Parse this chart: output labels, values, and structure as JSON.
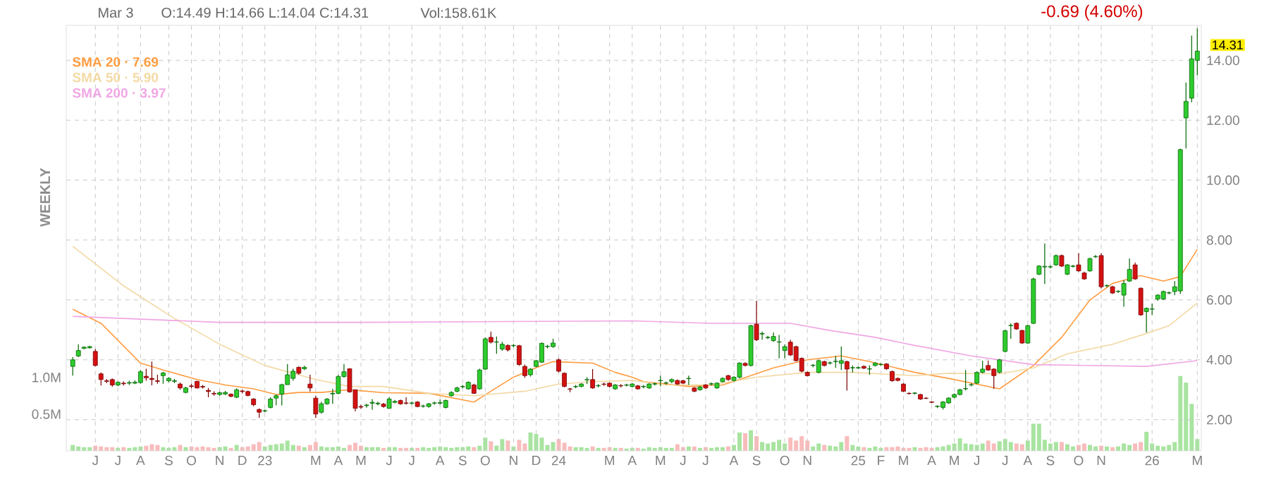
{
  "chart_data": {
    "type": "candlestick",
    "x": [
      "2022-05-09",
      "2022-05-16",
      "2022-05-23",
      "2022-05-30",
      "2022-06-06",
      "2022-06-13",
      "2022-06-20",
      "2022-06-27",
      "2022-07-04",
      "2022-07-11",
      "2022-07-18",
      "2022-07-25",
      "2022-08-01",
      "2022-08-08",
      "2022-08-15",
      "2022-08-22",
      "2022-08-29",
      "2022-09-05",
      "2022-09-12",
      "2022-09-19",
      "2022-09-26",
      "2022-10-03",
      "2022-10-10",
      "2022-10-17",
      "2022-10-24",
      "2022-10-31",
      "2022-11-07",
      "2022-11-14",
      "2022-11-21",
      "2022-11-28",
      "2022-12-05",
      "2022-12-12",
      "2022-12-19",
      "2022-12-26",
      "2023-01-02",
      "2023-01-09",
      "2023-01-16",
      "2023-01-23",
      "2023-01-30",
      "2023-02-06",
      "2023-02-13",
      "2023-02-20",
      "2023-02-27",
      "2023-03-06",
      "2023-03-13",
      "2023-03-20",
      "2023-03-27",
      "2023-04-03",
      "2023-04-10",
      "2023-04-17",
      "2023-04-24",
      "2023-05-01",
      "2023-05-08",
      "2023-05-15",
      "2023-05-22",
      "2023-05-29",
      "2023-06-05",
      "2023-06-12",
      "2023-06-19",
      "2023-06-26",
      "2023-07-03",
      "2023-07-10",
      "2023-07-17",
      "2023-07-24",
      "2023-07-31",
      "2023-08-07",
      "2023-08-14",
      "2023-08-21",
      "2023-08-28",
      "2023-09-04",
      "2023-09-11",
      "2023-09-18",
      "2023-09-25",
      "2023-10-02",
      "2023-10-09",
      "2023-10-16",
      "2023-10-23",
      "2023-10-30",
      "2023-11-06",
      "2023-11-13",
      "2023-11-20",
      "2023-11-27",
      "2023-12-04",
      "2023-12-11",
      "2023-12-18",
      "2023-12-25",
      "2024-01-01",
      "2024-01-08",
      "2024-01-15",
      "2024-01-22",
      "2024-01-29",
      "2024-02-05",
      "2024-02-12",
      "2024-02-19",
      "2024-02-26",
      "2024-03-04",
      "2024-03-11",
      "2024-03-18",
      "2024-03-25",
      "2024-04-01",
      "2024-04-08",
      "2024-04-15",
      "2024-04-22",
      "2024-04-29",
      "2024-05-06",
      "2024-05-13",
      "2024-05-20",
      "2024-05-27",
      "2024-06-03",
      "2024-06-10",
      "2024-06-17",
      "2024-06-24",
      "2024-07-01",
      "2024-07-08",
      "2024-07-15",
      "2024-07-22",
      "2024-07-29",
      "2024-08-05",
      "2024-08-12",
      "2024-08-19",
      "2024-08-26",
      "2024-09-02",
      "2024-09-09",
      "2024-09-16",
      "2024-09-23",
      "2024-09-30",
      "2024-10-07",
      "2024-10-14",
      "2024-10-21",
      "2024-10-28",
      "2024-11-04",
      "2024-11-11",
      "2024-11-18",
      "2024-11-25",
      "2024-12-02",
      "2024-12-09",
      "2024-12-16",
      "2024-12-23",
      "2024-12-30",
      "2025-01-06",
      "2025-01-13",
      "2025-01-20",
      "2025-01-27",
      "2025-02-03",
      "2025-02-10",
      "2025-02-17",
      "2025-02-24",
      "2025-03-03",
      "2025-03-10",
      "2025-03-17",
      "2025-03-24",
      "2025-03-31",
      "2025-04-07",
      "2025-04-14",
      "2025-04-21",
      "2025-04-28",
      "2025-05-05",
      "2025-05-12",
      "2025-05-19",
      "2025-05-26",
      "2025-06-02",
      "2025-06-09",
      "2025-06-16",
      "2025-06-23",
      "2025-06-30",
      "2025-07-07",
      "2025-07-14",
      "2025-07-21",
      "2025-07-28",
      "2025-08-04",
      "2025-08-11",
      "2025-08-18",
      "2025-08-25",
      "2025-09-01",
      "2025-09-08",
      "2025-09-15",
      "2025-09-22",
      "2025-09-29",
      "2025-10-06",
      "2025-10-13",
      "2025-10-20",
      "2025-10-27",
      "2025-11-03",
      "2025-11-10",
      "2025-11-17",
      "2025-11-24",
      "2025-12-01",
      "2025-12-08",
      "2025-12-15",
      "2025-12-22",
      "2025-12-29",
      "2026-01-05",
      "2026-01-12",
      "2026-01-19",
      "2026-01-26",
      "2026-02-02",
      "2026-02-09",
      "2026-02-16",
      "2026-02-23",
      "2026-03-02"
    ],
    "ohlc": [
      [
        3.78,
        4.09,
        3.47,
        4.0
      ],
      [
        4.13,
        4.52,
        4.09,
        4.31
      ],
      [
        4.38,
        4.45,
        4.36,
        4.42
      ],
      [
        4.4,
        4.47,
        4.38,
        4.44
      ],
      [
        4.28,
        4.36,
        3.78,
        3.81
      ],
      [
        3.53,
        3.58,
        3.14,
        3.34
      ],
      [
        3.3,
        3.36,
        3.22,
        3.28
      ],
      [
        3.34,
        3.38,
        3.1,
        3.16
      ],
      [
        3.16,
        3.28,
        3.12,
        3.25
      ],
      [
        3.22,
        3.28,
        3.14,
        3.2
      ],
      [
        3.22,
        3.3,
        3.16,
        3.24
      ],
      [
        3.22,
        3.31,
        3.19,
        3.25
      ],
      [
        3.24,
        3.66,
        3.2,
        3.6
      ],
      [
        3.45,
        3.7,
        3.3,
        3.4
      ],
      [
        3.38,
        3.94,
        3.15,
        3.34
      ],
      [
        3.3,
        3.5,
        3.2,
        3.28
      ],
      [
        3.47,
        3.6,
        3.2,
        3.56
      ],
      [
        3.3,
        3.42,
        3.25,
        3.38
      ],
      [
        3.28,
        3.36,
        3.22,
        3.3
      ],
      [
        3.19,
        3.24,
        3.0,
        3.06
      ],
      [
        2.91,
        3.1,
        2.88,
        3.06
      ],
      [
        3.13,
        3.2,
        3.05,
        3.11
      ],
      [
        3.28,
        3.3,
        3.04,
        3.06
      ],
      [
        3.11,
        3.16,
        3.04,
        3.09
      ],
      [
        2.98,
        3.06,
        2.75,
        2.94
      ],
      [
        2.88,
        2.95,
        2.8,
        2.86
      ],
      [
        2.84,
        2.94,
        2.8,
        2.9
      ],
      [
        2.86,
        2.96,
        2.82,
        2.91
      ],
      [
        2.85,
        2.88,
        2.75,
        2.78
      ],
      [
        2.75,
        3.04,
        2.72,
        3.0
      ],
      [
        2.96,
        3.0,
        2.88,
        2.94
      ],
      [
        2.94,
        2.97,
        2.78,
        2.81
      ],
      [
        2.69,
        2.72,
        2.45,
        2.5
      ],
      [
        2.34,
        2.38,
        2.06,
        2.25
      ],
      [
        2.29,
        2.34,
        2.25,
        2.3
      ],
      [
        2.41,
        2.75,
        2.38,
        2.69
      ],
      [
        2.72,
        2.84,
        2.48,
        2.8
      ],
      [
        2.85,
        3.2,
        2.48,
        3.17
      ],
      [
        3.17,
        3.86,
        3.17,
        3.5
      ],
      [
        3.38,
        3.7,
        3.3,
        3.62
      ],
      [
        3.75,
        3.78,
        3.5,
        3.55
      ],
      [
        3.7,
        3.8,
        3.66,
        3.75
      ],
      [
        3.19,
        3.5,
        2.94,
        3.06
      ],
      [
        2.72,
        2.8,
        2.06,
        2.19
      ],
      [
        2.25,
        2.6,
        2.2,
        2.53
      ],
      [
        2.53,
        2.72,
        2.5,
        2.69
      ],
      [
        2.86,
        3.03,
        2.53,
        2.88
      ],
      [
        2.88,
        3.5,
        2.85,
        3.44
      ],
      [
        3.44,
        3.86,
        3.4,
        3.6
      ],
      [
        3.7,
        3.72,
        2.9,
        2.93
      ],
      [
        3.0,
        3.0,
        2.28,
        2.38
      ],
      [
        2.44,
        2.5,
        2.36,
        2.42
      ],
      [
        2.47,
        2.53,
        2.4,
        2.49
      ],
      [
        2.55,
        2.69,
        2.33,
        2.58
      ],
      [
        2.53,
        2.6,
        2.48,
        2.55
      ],
      [
        2.52,
        2.56,
        2.4,
        2.44
      ],
      [
        2.38,
        2.75,
        2.36,
        2.69
      ],
      [
        2.58,
        2.66,
        2.55,
        2.61
      ],
      [
        2.64,
        2.67,
        2.5,
        2.53
      ],
      [
        2.56,
        2.75,
        2.5,
        2.55
      ],
      [
        2.55,
        2.6,
        2.5,
        2.56
      ],
      [
        2.59,
        2.62,
        2.41,
        2.44
      ],
      [
        2.45,
        2.5,
        2.4,
        2.46
      ],
      [
        2.44,
        2.56,
        2.4,
        2.53
      ],
      [
        2.55,
        2.6,
        2.5,
        2.56
      ],
      [
        2.55,
        2.67,
        2.5,
        2.57
      ],
      [
        2.41,
        2.67,
        2.38,
        2.64
      ],
      [
        2.8,
        2.95,
        2.77,
        2.91
      ],
      [
        2.95,
        3.1,
        2.92,
        3.06
      ],
      [
        3.1,
        3.16,
        3.05,
        3.11
      ],
      [
        3.03,
        3.28,
        3.0,
        3.25
      ],
      [
        3.16,
        3.2,
        2.86,
        2.88
      ],
      [
        3.03,
        3.7,
        3.0,
        3.66
      ],
      [
        3.69,
        4.75,
        3.66,
        4.7
      ],
      [
        4.75,
        4.94,
        4.55,
        4.59
      ],
      [
        4.59,
        4.78,
        4.2,
        4.6
      ],
      [
        4.36,
        4.6,
        4.3,
        4.52
      ],
      [
        4.48,
        4.52,
        4.28,
        4.33
      ],
      [
        4.47,
        4.53,
        4.42,
        4.48
      ],
      [
        4.47,
        4.5,
        3.8,
        3.84
      ],
      [
        3.78,
        3.84,
        3.4,
        3.47
      ],
      [
        3.5,
        3.72,
        3.44,
        3.69
      ],
      [
        3.78,
        4.0,
        3.75,
        3.97
      ],
      [
        3.92,
        4.58,
        3.9,
        4.55
      ],
      [
        4.44,
        4.5,
        4.38,
        4.45
      ],
      [
        4.44,
        4.7,
        4.4,
        4.56
      ],
      [
        4.0,
        4.05,
        3.58,
        3.62
      ],
      [
        3.55,
        3.58,
        3.08,
        3.11
      ],
      [
        3.03,
        3.06,
        2.92,
        3.02
      ],
      [
        3.1,
        3.16,
        3.05,
        3.11
      ],
      [
        3.11,
        3.22,
        3.08,
        3.19
      ],
      [
        3.33,
        3.42,
        3.19,
        3.34
      ],
      [
        3.34,
        3.69,
        3.03,
        3.06
      ],
      [
        3.13,
        3.19,
        3.08,
        3.14
      ],
      [
        3.19,
        3.24,
        3.13,
        3.18
      ],
      [
        3.22,
        3.25,
        3.08,
        3.11
      ],
      [
        3.03,
        3.19,
        3.0,
        3.16
      ],
      [
        3.14,
        3.19,
        3.08,
        3.13
      ],
      [
        3.15,
        3.2,
        3.11,
        3.16
      ],
      [
        3.11,
        3.22,
        3.08,
        3.19
      ],
      [
        3.13,
        3.16,
        3.0,
        3.03
      ],
      [
        3.1,
        3.16,
        3.05,
        3.11
      ],
      [
        3.06,
        3.22,
        3.03,
        3.19
      ],
      [
        3.19,
        3.24,
        3.14,
        3.2
      ],
      [
        3.3,
        3.47,
        3.11,
        3.31
      ],
      [
        3.22,
        3.27,
        3.17,
        3.23
      ],
      [
        3.27,
        3.38,
        3.22,
        3.34
      ],
      [
        3.31,
        3.34,
        3.16,
        3.19
      ],
      [
        3.3,
        3.33,
        3.19,
        3.22
      ],
      [
        3.37,
        3.47,
        3.16,
        3.38
      ],
      [
        3.06,
        3.09,
        2.92,
        2.95
      ],
      [
        3.0,
        3.13,
        2.97,
        3.09
      ],
      [
        3.16,
        3.19,
        3.03,
        3.06
      ],
      [
        3.19,
        3.24,
        3.14,
        3.2
      ],
      [
        3.06,
        3.25,
        3.03,
        3.22
      ],
      [
        3.27,
        3.41,
        3.24,
        3.38
      ],
      [
        3.47,
        3.5,
        3.3,
        3.34
      ],
      [
        3.31,
        3.45,
        3.28,
        3.42
      ],
      [
        3.42,
        3.92,
        3.38,
        3.89
      ],
      [
        3.88,
        3.92,
        3.78,
        3.81
      ],
      [
        3.81,
        5.17,
        3.78,
        5.14
      ],
      [
        5.19,
        5.97,
        4.63,
        4.67
      ],
      [
        4.86,
        4.94,
        4.67,
        4.88
      ],
      [
        4.74,
        4.8,
        4.69,
        4.75
      ],
      [
        4.64,
        4.91,
        4.6,
        4.78
      ],
      [
        4.59,
        4.83,
        4.05,
        4.6
      ],
      [
        4.31,
        4.52,
        4.05,
        4.44
      ],
      [
        4.59,
        4.67,
        4.13,
        4.16
      ],
      [
        4.44,
        4.47,
        3.94,
        3.97
      ],
      [
        4.05,
        4.08,
        3.58,
        3.62
      ],
      [
        3.58,
        3.61,
        3.44,
        3.47
      ],
      [
        3.81,
        3.86,
        3.75,
        3.82
      ],
      [
        3.58,
        4.0,
        3.55,
        3.97
      ],
      [
        3.94,
        3.97,
        3.78,
        3.81
      ],
      [
        3.89,
        3.94,
        3.84,
        3.9
      ],
      [
        3.94,
        4.13,
        3.73,
        3.95
      ],
      [
        3.88,
        4.44,
        3.66,
        3.97
      ],
      [
        3.94,
        3.97,
        2.97,
        3.69
      ],
      [
        3.73,
        3.81,
        3.58,
        3.74
      ],
      [
        3.73,
        3.78,
        3.69,
        3.74
      ],
      [
        3.78,
        3.81,
        3.69,
        3.72
      ],
      [
        3.69,
        3.81,
        3.5,
        3.7
      ],
      [
        3.81,
        3.92,
        3.78,
        3.89
      ],
      [
        3.84,
        3.89,
        3.8,
        3.85
      ],
      [
        3.86,
        3.89,
        3.67,
        3.7
      ],
      [
        3.61,
        3.64,
        3.27,
        3.3
      ],
      [
        3.38,
        3.41,
        3.28,
        3.31
      ],
      [
        3.19,
        3.22,
        2.92,
        2.95
      ],
      [
        2.88,
        2.92,
        2.84,
        2.87
      ],
      [
        2.88,
        2.92,
        2.84,
        2.89
      ],
      [
        2.84,
        2.86,
        2.66,
        2.69
      ],
      [
        2.72,
        2.75,
        2.69,
        2.71
      ],
      [
        2.59,
        2.62,
        2.55,
        2.58
      ],
      [
        2.44,
        2.48,
        2.39,
        2.45
      ],
      [
        2.41,
        2.62,
        2.34,
        2.59
      ],
      [
        2.56,
        2.75,
        2.53,
        2.72
      ],
      [
        2.75,
        2.88,
        2.72,
        2.84
      ],
      [
        2.84,
        3.03,
        2.81,
        3.0
      ],
      [
        3.03,
        3.66,
        2.98,
        3.04
      ],
      [
        3.16,
        3.22,
        3.11,
        3.17
      ],
      [
        3.22,
        3.61,
        3.19,
        3.58
      ],
      [
        3.58,
        3.97,
        3.55,
        3.69
      ],
      [
        3.81,
        3.97,
        3.63,
        3.66
      ],
      [
        3.69,
        3.72,
        3.03,
        3.47
      ],
      [
        3.58,
        4.03,
        3.55,
        4.0
      ],
      [
        4.28,
        5.0,
        4.25,
        4.97
      ],
      [
        5.14,
        5.22,
        4.7,
        5.15
      ],
      [
        5.22,
        5.25,
        5.0,
        5.03
      ],
      [
        4.98,
        5.0,
        4.53,
        4.56
      ],
      [
        4.56,
        5.17,
        4.53,
        5.14
      ],
      [
        5.22,
        6.75,
        5.19,
        6.7
      ],
      [
        6.86,
        7.16,
        6.83,
        7.13
      ],
      [
        7.1,
        7.88,
        6.53,
        7.12
      ],
      [
        7.1,
        7.16,
        7.05,
        7.11
      ],
      [
        7.17,
        7.52,
        7.14,
        7.48
      ],
      [
        7.48,
        7.52,
        7.1,
        7.13
      ],
      [
        6.86,
        7.2,
        6.83,
        7.17
      ],
      [
        7.12,
        7.17,
        7.08,
        7.13
      ],
      [
        7.17,
        7.56,
        6.94,
        6.97
      ],
      [
        6.9,
        6.94,
        6.67,
        6.7
      ],
      [
        6.97,
        7.41,
        6.94,
        7.38
      ],
      [
        7.44,
        7.5,
        7.4,
        7.45
      ],
      [
        7.48,
        7.56,
        6.39,
        6.44
      ],
      [
        6.47,
        6.52,
        6.42,
        6.48
      ],
      [
        6.44,
        6.47,
        6.2,
        6.23
      ],
      [
        6.28,
        6.33,
        6.23,
        6.29
      ],
      [
        6.16,
        6.66,
        5.77,
        6.55
      ],
      [
        6.63,
        7.38,
        6.6,
        7.02
      ],
      [
        7.17,
        7.25,
        6.67,
        6.7
      ],
      [
        6.39,
        6.42,
        5.47,
        5.5
      ],
      [
        5.61,
        5.75,
        4.91,
        5.72
      ],
      [
        5.69,
        5.88,
        5.5,
        5.7
      ],
      [
        6.03,
        6.19,
        5.97,
        6.16
      ],
      [
        6.03,
        6.31,
        6.0,
        6.28
      ],
      [
        6.23,
        6.28,
        6.19,
        6.24
      ],
      [
        6.28,
        6.63,
        6.16,
        6.44
      ],
      [
        6.3,
        11.05,
        6.2,
        11.02
      ],
      [
        12.08,
        13.26,
        11.06,
        12.63
      ],
      [
        12.74,
        14.83,
        12.6,
        14.05
      ],
      [
        14.0,
        15.07,
        13.5,
        14.31
      ]
    ],
    "series": [
      {
        "type": "bar",
        "axis": "y2",
        "values": [
          0.08,
          0.06,
          0.05,
          0.05,
          0.07,
          0.06,
          0.05,
          0.05,
          0.04,
          0.05,
          0.04,
          0.05,
          0.06,
          0.07,
          0.09,
          0.08,
          0.05,
          0.04,
          0.05,
          0.08,
          0.05,
          0.06,
          0.05,
          0.06,
          0.05,
          0.04,
          0.05,
          0.06,
          0.04,
          0.08,
          0.05,
          0.06,
          0.09,
          0.12,
          0.06,
          0.08,
          0.09,
          0.1,
          0.14,
          0.08,
          0.07,
          0.05,
          0.08,
          0.12,
          0.06,
          0.05,
          0.05,
          0.06,
          0.04,
          0.08,
          0.11,
          0.07,
          0.05,
          0.05,
          0.05,
          0.04,
          0.05,
          0.05,
          0.04,
          0.04,
          0.04,
          0.04,
          0.05,
          0.04,
          0.05,
          0.06,
          0.05,
          0.04,
          0.05,
          0.05,
          0.06,
          0.05,
          0.07,
          0.18,
          0.13,
          0.07,
          0.16,
          0.14,
          0.06,
          0.15,
          0.1,
          0.25,
          0.23,
          0.18,
          0.08,
          0.12,
          0.16,
          0.11,
          0.06,
          0.05,
          0.05,
          0.04,
          0.06,
          0.04,
          0.04,
          0.05,
          0.04,
          0.04,
          0.03,
          0.04,
          0.04,
          0.03,
          0.05,
          0.04,
          0.05,
          0.04,
          0.04,
          0.09,
          0.05,
          0.06,
          0.06,
          0.04,
          0.05,
          0.04,
          0.05,
          0.05,
          0.06,
          0.08,
          0.25,
          0.24,
          0.28,
          0.2,
          0.12,
          0.1,
          0.12,
          0.15,
          0.1,
          0.18,
          0.14,
          0.2,
          0.14,
          0.06,
          0.1,
          0.08,
          0.07,
          0.06,
          0.12,
          0.2,
          0.08,
          0.06,
          0.05,
          0.04,
          0.06,
          0.04,
          0.05,
          0.05,
          0.06,
          0.04,
          0.04,
          0.05,
          0.04,
          0.05,
          0.04,
          0.05,
          0.06,
          0.08,
          0.1,
          0.17,
          0.1,
          0.09,
          0.08,
          0.1,
          0.14,
          0.1,
          0.13,
          0.16,
          0.12,
          0.1,
          0.09,
          0.14,
          0.37,
          0.37,
          0.15,
          0.1,
          0.12,
          0.12,
          0.09,
          0.06,
          0.08,
          0.1,
          0.08,
          0.06,
          0.07,
          0.06,
          0.05,
          0.06,
          0.1,
          0.08,
          0.1,
          0.12,
          0.26,
          0.1,
          0.07,
          0.06,
          0.08,
          0.12,
          1.02,
          0.93,
          0.64,
          0.16
        ],
        "colors": [
          "#a8e4a0",
          "#a8e4a0",
          "#a8e4a0",
          "#a8e4a0",
          "#f8bcbc",
          "#f8bcbc",
          "#f8bcbc",
          "#f8bcbc",
          "#a8e4a0",
          "#f8bcbc",
          "#a8e4a0",
          "#a8e4a0",
          "#a8e4a0",
          "#f8bcbc",
          "#f8bcbc",
          "#f8bcbc",
          "#a8e4a0",
          "#a8e4a0",
          "#a8e4a0",
          "#f8bcbc",
          "#a8e4a0",
          "#f8bcbc",
          "#f8bcbc",
          "#f8bcbc",
          "#f8bcbc",
          "#f8bcbc",
          "#a8e4a0",
          "#a8e4a0",
          "#f8bcbc",
          "#a8e4a0",
          "#f8bcbc",
          "#f8bcbc",
          "#f8bcbc",
          "#f8bcbc",
          "#a8e4a0",
          "#a8e4a0",
          "#a8e4a0",
          "#a8e4a0",
          "#a8e4a0",
          "#a8e4a0",
          "#f8bcbc",
          "#a8e4a0",
          "#f8bcbc",
          "#f8bcbc",
          "#a8e4a0",
          "#a8e4a0",
          "#a8e4a0",
          "#a8e4a0",
          "#a8e4a0",
          "#f8bcbc",
          "#f8bcbc",
          "#f8bcbc",
          "#a8e4a0",
          "#a8e4a0",
          "#a8e4a0",
          "#f8bcbc",
          "#a8e4a0",
          "#a8e4a0",
          "#f8bcbc",
          "#f8bcbc",
          "#a8e4a0",
          "#f8bcbc",
          "#a8e4a0",
          "#a8e4a0",
          "#a8e4a0",
          "#a8e4a0",
          "#a8e4a0",
          "#a8e4a0",
          "#a8e4a0",
          "#a8e4a0",
          "#a8e4a0",
          "#f8bcbc",
          "#a8e4a0",
          "#a8e4a0",
          "#f8bcbc",
          "#a8e4a0",
          "#a8e4a0",
          "#f8bcbc",
          "#a8e4a0",
          "#f8bcbc",
          "#f8bcbc",
          "#a8e4a0",
          "#a8e4a0",
          "#a8e4a0",
          "#a8e4a0",
          "#a8e4a0",
          "#f8bcbc",
          "#f8bcbc",
          "#f8bcbc",
          "#a8e4a0",
          "#a8e4a0",
          "#a8e4a0",
          "#f8bcbc",
          "#a8e4a0",
          "#f8bcbc",
          "#f8bcbc",
          "#a8e4a0",
          "#f8bcbc",
          "#a8e4a0",
          "#a8e4a0",
          "#f8bcbc",
          "#a8e4a0",
          "#a8e4a0",
          "#a8e4a0",
          "#a8e4a0",
          "#a8e4a0",
          "#a8e4a0",
          "#f8bcbc",
          "#f8bcbc",
          "#a8e4a0",
          "#f8bcbc",
          "#a8e4a0",
          "#f8bcbc",
          "#a8e4a0",
          "#a8e4a0",
          "#a8e4a0",
          "#f8bcbc",
          "#a8e4a0",
          "#a8e4a0",
          "#f8bcbc",
          "#a8e4a0",
          "#f8bcbc",
          "#a8e4a0",
          "#a8e4a0",
          "#a8e4a0",
          "#a8e4a0",
          "#a8e4a0",
          "#f8bcbc",
          "#f8bcbc",
          "#f8bcbc",
          "#f8bcbc",
          "#a8e4a0",
          "#a8e4a0",
          "#f8bcbc",
          "#a8e4a0",
          "#a8e4a0",
          "#a8e4a0",
          "#f8bcbc",
          "#a8e4a0",
          "#a8e4a0",
          "#f8bcbc",
          "#a8e4a0",
          "#a8e4a0",
          "#a8e4a0",
          "#f8bcbc",
          "#f8bcbc",
          "#f8bcbc",
          "#f8bcbc",
          "#f8bcbc",
          "#a8e4a0",
          "#f8bcbc",
          "#f8bcbc",
          "#f8bcbc",
          "#a8e4a0",
          "#a8e4a0",
          "#a8e4a0",
          "#a8e4a0",
          "#a8e4a0",
          "#a8e4a0",
          "#a8e4a0",
          "#a8e4a0",
          "#a8e4a0",
          "#f8bcbc",
          "#f8bcbc",
          "#a8e4a0",
          "#a8e4a0",
          "#a8e4a0",
          "#f8bcbc",
          "#f8bcbc",
          "#a8e4a0",
          "#a8e4a0",
          "#a8e4a0",
          "#a8e4a0",
          "#a8e4a0",
          "#a8e4a0",
          "#f8bcbc",
          "#a8e4a0",
          "#a8e4a0",
          "#f8bcbc",
          "#f8bcbc",
          "#a8e4a0",
          "#a8e4a0",
          "#f8bcbc",
          "#a8e4a0",
          "#f8bcbc",
          "#a8e4a0",
          "#a8e4a0",
          "#a8e4a0",
          "#f8bcbc",
          "#f8bcbc",
          "#a8e4a0",
          "#a8e4a0",
          "#a8e4a0",
          "#a8e4a0",
          "#a8e4a0",
          "#a8e4a0",
          "#a8e4a0",
          "#a8e4a0",
          "#a8e4a0",
          "#a8e4a0"
        ]
      },
      {
        "type": "line",
        "name": "SMA 20 · 7.69",
        "color": "#ff9c40",
        "x": [
          "2022-05-09",
          "2022-06-13",
          "2022-08-01",
          "2022-08-29",
          "2022-10-10",
          "2022-11-14",
          "2022-12-19",
          "2023-01-16",
          "2023-02-13",
          "2023-03-13",
          "2023-04-17",
          "2023-05-29",
          "2023-07-24",
          "2023-09-18",
          "2023-10-09",
          "2023-11-06",
          "2023-12-11",
          "2023-12-25",
          "2024-02-12",
          "2024-03-11",
          "2024-04-01",
          "2024-04-15",
          "2024-06-10",
          "2024-07-22",
          "2024-08-12",
          "2024-09-23",
          "2024-11-04",
          "2024-12-16",
          "2025-01-20",
          "2025-03-17",
          "2025-04-28",
          "2025-06-30",
          "2025-08-11",
          "2025-09-15",
          "2025-10-20",
          "2025-11-17",
          "2025-12-22",
          "2026-01-19",
          "2026-02-09",
          "2026-03-02"
        ],
        "values": [
          5.69,
          5.22,
          3.89,
          3.66,
          3.34,
          3.16,
          3.03,
          2.84,
          2.91,
          2.91,
          3.0,
          2.9,
          2.88,
          2.59,
          2.95,
          3.42,
          3.81,
          3.94,
          3.89,
          3.58,
          3.42,
          3.27,
          3.11,
          3.16,
          3.34,
          3.73,
          4.0,
          4.13,
          3.94,
          3.58,
          3.38,
          3.03,
          3.81,
          4.75,
          6.0,
          6.55,
          6.81,
          6.63,
          6.78,
          7.69
        ]
      },
      {
        "type": "line",
        "name": "SMA 50 · 5.90",
        "color": "#f3d9a4",
        "x": [
          "2022-05-09",
          "2022-07-11",
          "2022-09-12",
          "2022-11-07",
          "2023-01-02",
          "2023-03-06",
          "2023-04-17",
          "2023-05-29",
          "2023-07-24",
          "2023-09-18",
          "2023-11-20",
          "2024-01-01",
          "2024-02-12",
          "2024-04-01",
          "2024-05-13",
          "2024-07-08",
          "2024-09-02",
          "2024-11-04",
          "2024-12-30",
          "2025-03-17",
          "2025-04-28",
          "2025-06-30",
          "2025-08-11",
          "2025-09-22",
          "2025-11-17",
          "2025-12-29",
          "2026-01-26",
          "2026-03-02"
        ],
        "values": [
          7.79,
          6.47,
          5.38,
          4.52,
          3.81,
          3.34,
          3.11,
          3.11,
          2.88,
          2.8,
          2.95,
          3.19,
          3.27,
          3.31,
          3.16,
          3.16,
          3.42,
          3.58,
          3.58,
          3.47,
          3.55,
          3.53,
          3.73,
          4.2,
          4.52,
          4.88,
          5.14,
          5.9
        ]
      },
      {
        "type": "line",
        "name": "SMA 200 · 3.97",
        "color": "#f0a6e4",
        "x": [
          "2022-05-09",
          "2022-11-07",
          "2023-04-17",
          "2023-09-18",
          "2024-04-01",
          "2024-07-08",
          "2024-10-14",
          "2024-12-02",
          "2025-01-27",
          "2025-03-17",
          "2025-05-26",
          "2025-08-11",
          "2025-10-20",
          "2025-12-29",
          "2026-03-02"
        ],
        "values": [
          5.45,
          5.25,
          5.25,
          5.27,
          5.3,
          5.22,
          5.22,
          4.98,
          4.75,
          4.48,
          4.13,
          3.84,
          3.81,
          3.78,
          3.97
        ]
      }
    ],
    "xlim": [
      "2022-05-01",
      "2026-03-07"
    ],
    "xticks": [
      {
        "value": "2022-06-06",
        "label": "J"
      },
      {
        "value": "2022-07-04",
        "label": "J"
      },
      {
        "value": "2022-08-01",
        "label": "A"
      },
      {
        "value": "2022-09-05",
        "label": "S"
      },
      {
        "value": "2022-10-03",
        "label": "O"
      },
      {
        "value": "2022-11-07",
        "label": "N"
      },
      {
        "value": "2022-12-05",
        "label": "D"
      },
      {
        "value": "2023-01-02",
        "label": "23"
      },
      {
        "value": "2023-03-06",
        "label": "M"
      },
      {
        "value": "2023-04-03",
        "label": "A"
      },
      {
        "value": "2023-05-01",
        "label": "M"
      },
      {
        "value": "2023-06-05",
        "label": "J"
      },
      {
        "value": "2023-07-03",
        "label": "J"
      },
      {
        "value": "2023-08-07",
        "label": "A"
      },
      {
        "value": "2023-09-04",
        "label": "S"
      },
      {
        "value": "2023-10-02",
        "label": "O"
      },
      {
        "value": "2023-11-06",
        "label": "N"
      },
      {
        "value": "2023-12-04",
        "label": "D"
      },
      {
        "value": "2024-01-01",
        "label": "24"
      },
      {
        "value": "2024-03-04",
        "label": "M"
      },
      {
        "value": "2024-04-01",
        "label": "A"
      },
      {
        "value": "2024-05-06",
        "label": "M"
      },
      {
        "value": "2024-06-03",
        "label": "J"
      },
      {
        "value": "2024-07-01",
        "label": "J"
      },
      {
        "value": "2024-08-05",
        "label": "A"
      },
      {
        "value": "2024-09-02",
        "label": "S"
      },
      {
        "value": "2024-10-07",
        "label": "O"
      },
      {
        "value": "2024-11-04",
        "label": "N"
      },
      {
        "value": "2025-01-06",
        "label": "25"
      },
      {
        "value": "2025-02-03",
        "label": "F"
      },
      {
        "value": "2025-03-03",
        "label": "M"
      },
      {
        "value": "2025-04-07",
        "label": "A"
      },
      {
        "value": "2025-05-05",
        "label": "M"
      },
      {
        "value": "2025-06-02",
        "label": "J"
      },
      {
        "value": "2025-07-07",
        "label": "J"
      },
      {
        "value": "2025-08-04",
        "label": "A"
      },
      {
        "value": "2025-09-01",
        "label": "S"
      },
      {
        "value": "2025-10-06",
        "label": "O"
      },
      {
        "value": "2025-11-03",
        "label": "N"
      },
      {
        "value": "2026-01-05",
        "label": "26"
      },
      {
        "value": "2026-03-02",
        "label": "M"
      }
    ],
    "ylim": [
      0.96,
      15.17
    ],
    "yticks": [
      {
        "value": 2,
        "label": "2.00"
      },
      {
        "value": 4,
        "label": "4.00"
      },
      {
        "value": 6,
        "label": "6.00"
      },
      {
        "value": 8,
        "label": "8.00"
      },
      {
        "value": 10,
        "label": "10.00"
      },
      {
        "value": 12,
        "label": "12.00"
      },
      {
        "value": 14,
        "label": "14.00"
      }
    ],
    "y2lim": [
      0,
      5.8
    ],
    "y2ticks": [
      {
        "value": 0.5,
        "label": "0.5M"
      },
      {
        "value": 1.0,
        "label": "1.0M"
      }
    ],
    "grid": true,
    "legend": "top left",
    "annotations": [
      "Mar 3",
      "O:14.49  H:14.66  L:14.04  C:14.31",
      "Vol:158.61K",
      "-0.69 (4.60%)",
      "WEEKLY",
      {
        "text": "14.31",
        "x": "2026-03-02",
        "y": 14.31
      }
    ]
  }
}
